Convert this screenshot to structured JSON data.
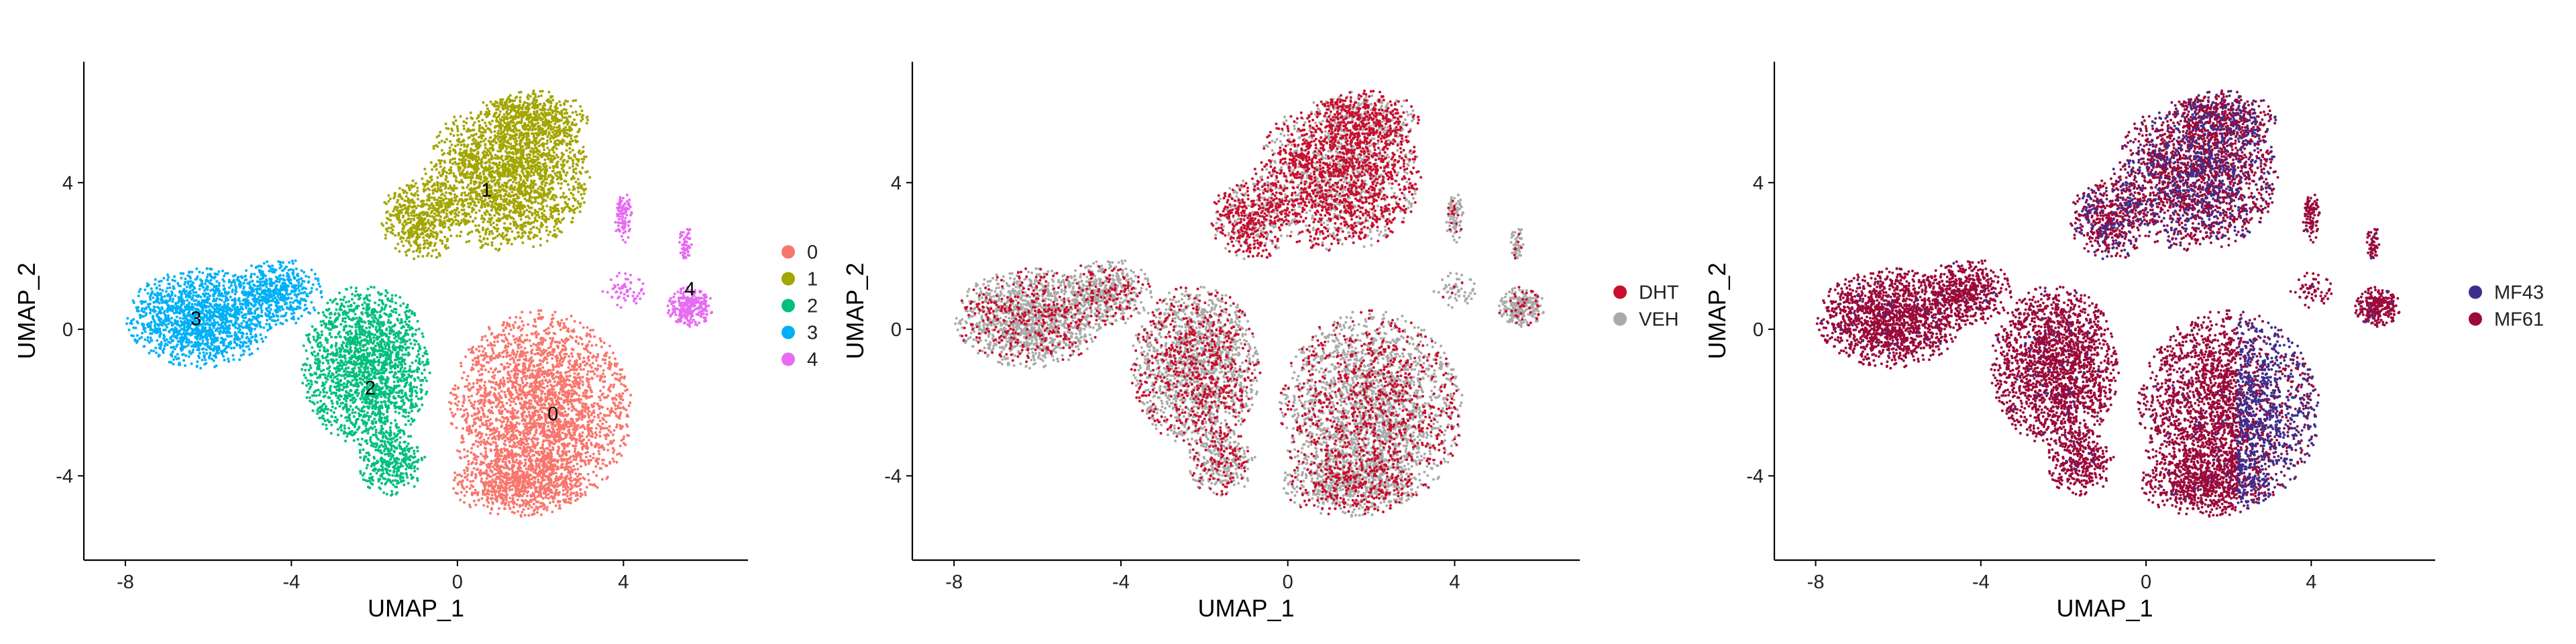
{
  "chart_data": [
    {
      "type": "scatter",
      "xlabel": "UMAP_1",
      "ylabel": "UMAP_2",
      "xlim": [
        -9,
        7
      ],
      "ylim": [
        -6.3,
        7.3
      ],
      "xticks": [
        "-8",
        "-4",
        "0",
        "4"
      ],
      "yticks": [
        "-4",
        "0",
        "4"
      ],
      "grid": false,
      "legend_position": "right",
      "series": [
        {
          "name": "0",
          "color": "#F8766D"
        },
        {
          "name": "1",
          "color": "#A3A500"
        },
        {
          "name": "2",
          "color": "#00BF7D"
        },
        {
          "name": "3",
          "color": "#00B0F6"
        },
        {
          "name": "4",
          "color": "#E76BF3"
        }
      ],
      "annotations": [
        {
          "text": "0",
          "x": 2.3,
          "y": -2.3
        },
        {
          "text": "1",
          "x": 0.7,
          "y": 3.8
        },
        {
          "text": "2",
          "x": -2.1,
          "y": -1.6
        },
        {
          "text": "3",
          "x": -6.3,
          "y": 0.3
        },
        {
          "text": "4",
          "x": 5.6,
          "y": 1.1
        }
      ]
    },
    {
      "type": "scatter",
      "xlabel": "UMAP_1",
      "ylabel": "UMAP_2",
      "xlim": [
        -9,
        7
      ],
      "ylim": [
        -6.3,
        7.3
      ],
      "xticks": [
        "-8",
        "-4",
        "0",
        "4"
      ],
      "yticks": [
        "-4",
        "0",
        "4"
      ],
      "grid": false,
      "legend_position": "right",
      "series": [
        {
          "name": "DHT",
          "color": "#C8102E"
        },
        {
          "name": "VEH",
          "color": "#AAAAAA"
        }
      ]
    },
    {
      "type": "scatter",
      "xlabel": "UMAP_1",
      "ylabel": "UMAP_2",
      "xlim": [
        -9,
        7
      ],
      "ylim": [
        -6.3,
        7.3
      ],
      "xticks": [
        "-8",
        "-4",
        "0",
        "4"
      ],
      "yticks": [
        "-4",
        "0",
        "4"
      ],
      "grid": false,
      "legend_position": "right",
      "series": [
        {
          "name": "MF43",
          "color": "#3D2F8F"
        },
        {
          "name": "MF61",
          "color": "#9B0A3A"
        }
      ]
    }
  ]
}
